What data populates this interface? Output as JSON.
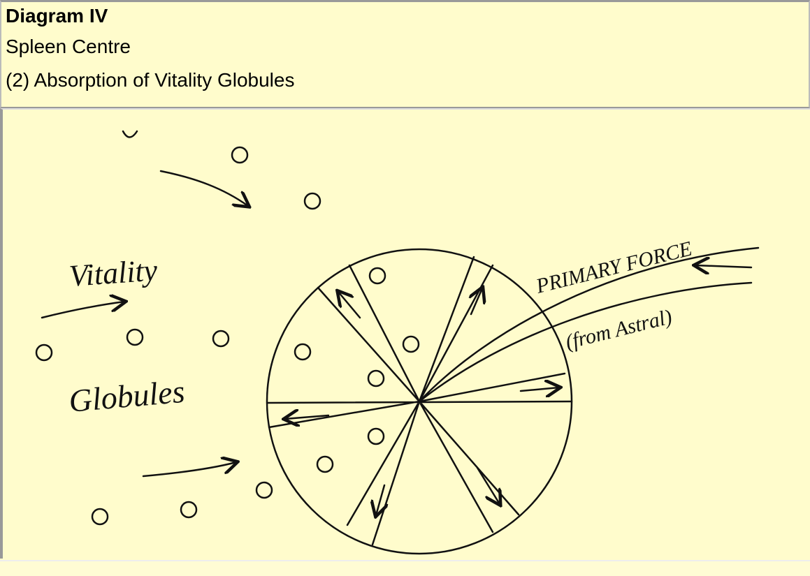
{
  "header": {
    "title": "Diagram IV",
    "subtitle": "Spleen Centre",
    "caption": "(2) Absorption of Vitality Globules"
  },
  "diagram": {
    "labels": {
      "vitality": "Vitality",
      "globules": "Globules",
      "primary_force": "PRIMARY FORCE",
      "from_astral": "(from Astral)"
    }
  }
}
